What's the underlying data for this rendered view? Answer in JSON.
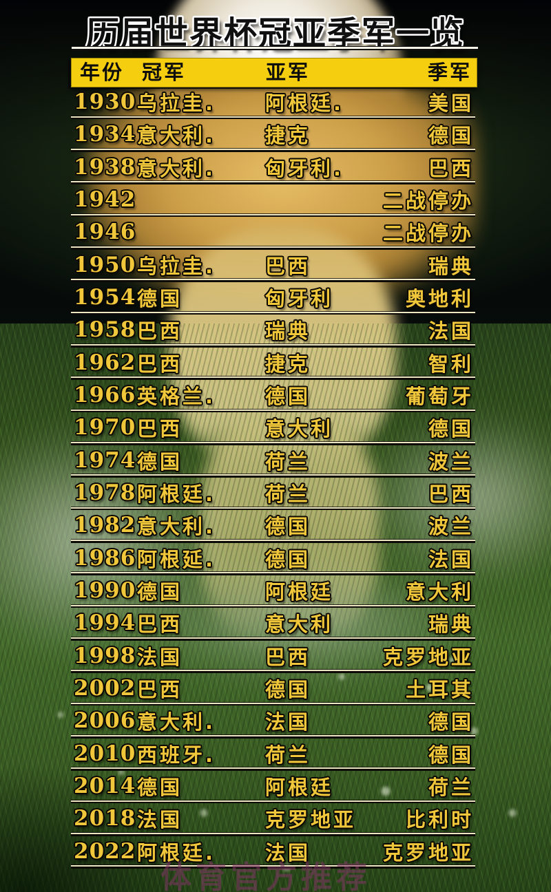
{
  "title": "历届世界杯冠亚季军一览",
  "watermark": "体育官方推荐",
  "colors": {
    "header_bar": "#f5ce0f",
    "row_text_gold": "#f0c73a",
    "title_fill": "#101010",
    "title_outline": "#ffffff",
    "watermark": "#80346480",
    "grass_green": "#39591f"
  },
  "chart_data": {
    "type": "table",
    "title": "历届世界杯冠亚季军一览",
    "columns": [
      "年份",
      "冠军",
      "亚军",
      "季军"
    ],
    "rows": [
      [
        "1930",
        "乌拉圭.",
        "阿根廷.",
        "美国"
      ],
      [
        "1934",
        "意大利.",
        "捷克",
        "德国"
      ],
      [
        "1938",
        "意大利.",
        "匈牙利.",
        "巴西"
      ],
      [
        "1942",
        "",
        "",
        "二战停办"
      ],
      [
        "1946",
        "",
        "",
        "二战停办"
      ],
      [
        "1950",
        "乌拉圭.",
        "巴西",
        "瑞典"
      ],
      [
        "1954",
        "德国",
        "匈牙利",
        "奥地利"
      ],
      [
        "1958",
        "巴西",
        "瑞典",
        "法国"
      ],
      [
        "1962",
        "巴西",
        "捷克",
        "智利"
      ],
      [
        "1966",
        "英格兰.",
        "德国",
        "葡萄牙"
      ],
      [
        "1970",
        "巴西",
        "意大利",
        "德国"
      ],
      [
        "1974",
        "德国",
        "荷兰",
        "波兰"
      ],
      [
        "1978",
        "阿根廷.",
        "荷兰",
        "巴西"
      ],
      [
        "1982",
        "意大利.",
        "德国",
        "波兰"
      ],
      [
        "1986",
        "阿根延.",
        "德国",
        "法国"
      ],
      [
        "1990",
        "德国",
        "阿根廷",
        "意大利"
      ],
      [
        "1994",
        "巴西",
        "意大利",
        "瑞典"
      ],
      [
        "1998",
        "法国",
        "巴西",
        "克罗地亚"
      ],
      [
        "2002",
        "巴西",
        "德国",
        "土耳其"
      ],
      [
        "2006",
        "意大利.",
        "法国",
        "德国"
      ],
      [
        "2010",
        "西班牙.",
        "荷兰",
        "德国"
      ],
      [
        "2014",
        "德国",
        "阿根廷",
        "荷兰"
      ],
      [
        "2018",
        "法国",
        "克罗地亚",
        "比利时"
      ],
      [
        "2022",
        "阿根廷.",
        "法国",
        "克罗地亚"
      ]
    ]
  }
}
